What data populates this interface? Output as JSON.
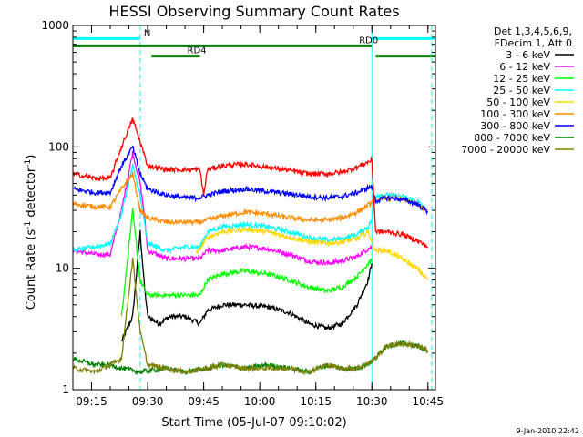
{
  "chart_data": {
    "type": "line",
    "title": "HESSI Observing Summary Count Rates",
    "xlabel": "Start Time (05-Jul-07 09:10:02)",
    "ylabel_main": "Count Rate (s",
    "ylabel_sup1": "-1",
    "ylabel_mid": " detector",
    "ylabel_sup2": "-1",
    "ylabel_end": ")",
    "ylabel": "Count Rate (s-1 detector-1)",
    "x_unit": "minutes after 09:10",
    "xlim": [
      0,
      97
    ],
    "ylim": [
      1,
      1000
    ],
    "yscale": "log",
    "x_ticks": [
      {
        "t": 5,
        "label": "09:15"
      },
      {
        "t": 20,
        "label": "09:30"
      },
      {
        "t": 35,
        "label": "09:45"
      },
      {
        "t": 50,
        "label": "10:00"
      },
      {
        "t": 65,
        "label": "10:15"
      },
      {
        "t": 80,
        "label": "10:30"
      },
      {
        "t": 95,
        "label": "10:45"
      }
    ],
    "y_ticks": [
      {
        "v": 1,
        "label": "1"
      },
      {
        "v": 10,
        "label": "10"
      },
      {
        "v": 100,
        "label": "100"
      },
      {
        "v": 1000,
        "label": "1000"
      }
    ],
    "legend_header": [
      "Det 1,3,4,5,6,9,",
      "FDecim 1, Att 0"
    ],
    "series": [
      {
        "name": "3 - 6 keV",
        "color": "#000000",
        "points": [
          [
            13,
            2.5
          ],
          [
            16,
            4
          ],
          [
            18,
            20
          ],
          [
            19,
            8
          ],
          [
            20,
            4
          ],
          [
            23,
            3.5
          ],
          [
            26,
            4
          ],
          [
            30,
            4
          ],
          [
            34,
            3.5
          ],
          [
            36,
            4.5
          ],
          [
            40,
            5
          ],
          [
            46,
            5
          ],
          [
            52,
            4.8
          ],
          [
            58,
            4.3
          ],
          [
            63,
            3.5
          ],
          [
            68,
            3.2
          ],
          [
            72,
            3.5
          ],
          [
            76,
            5
          ],
          [
            79,
            8
          ],
          [
            80,
            11
          ]
        ]
      },
      {
        "name": "6 - 12 keV",
        "color": "#ff00ff",
        "points": [
          [
            0,
            14
          ],
          [
            6,
            13
          ],
          [
            10,
            13
          ],
          [
            13,
            30
          ],
          [
            16,
            90
          ],
          [
            18,
            50
          ],
          [
            19,
            30
          ],
          [
            20,
            14
          ],
          [
            25,
            12
          ],
          [
            30,
            12
          ],
          [
            34,
            12
          ],
          [
            36,
            14
          ],
          [
            40,
            14
          ],
          [
            46,
            15
          ],
          [
            52,
            14.5
          ],
          [
            58,
            13
          ],
          [
            63,
            11.5
          ],
          [
            68,
            11
          ],
          [
            72,
            11.5
          ],
          [
            76,
            12.5
          ],
          [
            79,
            14.5
          ],
          [
            80,
            15
          ]
        ]
      },
      {
        "name": "12 - 25 keV",
        "color": "#00ff00",
        "points": [
          [
            13,
            4
          ],
          [
            16,
            30
          ],
          [
            18,
            8
          ],
          [
            20,
            6
          ],
          [
            25,
            6
          ],
          [
            30,
            6
          ],
          [
            34,
            6
          ],
          [
            36,
            8
          ],
          [
            40,
            9
          ],
          [
            46,
            9.5
          ],
          [
            52,
            9
          ],
          [
            58,
            8
          ],
          [
            63,
            7
          ],
          [
            68,
            6.5
          ],
          [
            72,
            7
          ],
          [
            76,
            8.5
          ],
          [
            79,
            11
          ],
          [
            80,
            12
          ]
        ]
      },
      {
        "name": "25 - 50 keV",
        "color": "#00ffff",
        "points": [
          [
            0,
            14
          ],
          [
            6,
            15
          ],
          [
            10,
            16
          ],
          [
            13,
            28
          ],
          [
            16,
            70
          ],
          [
            18,
            40
          ],
          [
            20,
            16
          ],
          [
            25,
            14
          ],
          [
            30,
            15
          ],
          [
            34,
            15
          ],
          [
            36,
            20
          ],
          [
            40,
            22
          ],
          [
            46,
            23
          ],
          [
            52,
            22
          ],
          [
            58,
            20
          ],
          [
            63,
            18
          ],
          [
            68,
            17
          ],
          [
            72,
            17.5
          ],
          [
            76,
            19
          ],
          [
            79,
            22
          ],
          [
            80,
            25
          ],
          [
            81,
            40
          ],
          [
            84,
            40
          ],
          [
            88,
            39
          ],
          [
            92,
            36
          ],
          [
            95,
            30
          ]
        ]
      },
      {
        "name": "50 - 100 keV",
        "color": "#ffd700",
        "points": [
          [
            33,
            13
          ],
          [
            36,
            18
          ],
          [
            40,
            20
          ],
          [
            46,
            21
          ],
          [
            52,
            20
          ],
          [
            58,
            18
          ],
          [
            63,
            16.5
          ],
          [
            68,
            16
          ],
          [
            72,
            16.5
          ],
          [
            76,
            17.5
          ],
          [
            79,
            20
          ],
          [
            81,
            14
          ],
          [
            84,
            14
          ],
          [
            88,
            12
          ],
          [
            92,
            10
          ],
          [
            95,
            8
          ]
        ]
      },
      {
        "name": "100 - 300 keV",
        "color": "#ff8c00",
        "points": [
          [
            0,
            34
          ],
          [
            6,
            32
          ],
          [
            10,
            32
          ],
          [
            13,
            45
          ],
          [
            16,
            60
          ],
          [
            18,
            30
          ],
          [
            20,
            26
          ],
          [
            25,
            24
          ],
          [
            30,
            24
          ],
          [
            34,
            24
          ],
          [
            36,
            25
          ],
          [
            40,
            27
          ],
          [
            46,
            29
          ],
          [
            52,
            28
          ],
          [
            58,
            26
          ],
          [
            63,
            25
          ],
          [
            68,
            25
          ],
          [
            72,
            26
          ],
          [
            76,
            29
          ],
          [
            79,
            33
          ],
          [
            80,
            35
          ],
          [
            81,
            36
          ],
          [
            84,
            38
          ],
          [
            88,
            37
          ],
          [
            92,
            34
          ],
          [
            95,
            29
          ]
        ]
      },
      {
        "name": "300 - 800 keV",
        "color": "#0000ff",
        "points": [
          [
            0,
            45
          ],
          [
            6,
            42
          ],
          [
            10,
            42
          ],
          [
            13,
            70
          ],
          [
            16,
            100
          ],
          [
            18,
            60
          ],
          [
            20,
            45
          ],
          [
            25,
            40
          ],
          [
            30,
            38
          ],
          [
            34,
            38
          ],
          [
            36,
            40
          ],
          [
            40,
            43
          ],
          [
            46,
            45
          ],
          [
            52,
            43
          ],
          [
            58,
            41
          ],
          [
            63,
            39
          ],
          [
            68,
            38
          ],
          [
            72,
            39
          ],
          [
            76,
            42
          ],
          [
            79,
            46
          ],
          [
            80,
            47
          ],
          [
            81,
            36
          ],
          [
            84,
            38
          ],
          [
            88,
            37
          ],
          [
            92,
            34
          ],
          [
            95,
            29
          ]
        ]
      },
      {
        "name": "800 - 7000 keV",
        "color": "#008000",
        "points": [
          [
            0,
            1.8
          ],
          [
            6,
            1.6
          ],
          [
            10,
            1.6
          ],
          [
            13,
            1.5
          ],
          [
            18,
            1.4
          ],
          [
            25,
            1.5
          ],
          [
            30,
            1.4
          ],
          [
            36,
            1.5
          ],
          [
            40,
            1.6
          ],
          [
            46,
            1.5
          ],
          [
            52,
            1.6
          ],
          [
            58,
            1.5
          ],
          [
            63,
            1.4
          ],
          [
            68,
            1.6
          ],
          [
            72,
            1.5
          ],
          [
            76,
            1.5
          ],
          [
            80,
            1.7
          ],
          [
            84,
            2.3
          ],
          [
            88,
            2.4
          ],
          [
            92,
            2.3
          ],
          [
            95,
            2.1
          ]
        ]
      },
      {
        "name": "7000 - 20000 keV",
        "color": "#808000",
        "points": [
          [
            0,
            1.5
          ],
          [
            6,
            1.4
          ],
          [
            10,
            1.6
          ],
          [
            13,
            1.8
          ],
          [
            16,
            12
          ],
          [
            18,
            3
          ],
          [
            20,
            1.6
          ],
          [
            25,
            1.5
          ],
          [
            30,
            1.4
          ],
          [
            36,
            1.5
          ],
          [
            40,
            1.6
          ],
          [
            46,
            1.5
          ],
          [
            52,
            1.5
          ],
          [
            58,
            1.5
          ],
          [
            63,
            1.4
          ],
          [
            68,
            1.6
          ],
          [
            72,
            1.5
          ],
          [
            76,
            1.5
          ],
          [
            80,
            1.7
          ],
          [
            84,
            2.3
          ],
          [
            88,
            2.4
          ],
          [
            92,
            2.3
          ],
          [
            95,
            2.1
          ]
        ]
      },
      {
        "name": "",
        "color": "#ff0000",
        "points": [
          [
            0,
            60
          ],
          [
            6,
            55
          ],
          [
            10,
            55
          ],
          [
            13,
            100
          ],
          [
            16,
            170
          ],
          [
            18,
            110
          ],
          [
            20,
            70
          ],
          [
            25,
            65
          ],
          [
            30,
            65
          ],
          [
            34,
            65
          ],
          [
            35,
            40
          ],
          [
            36,
            65
          ],
          [
            40,
            70
          ],
          [
            46,
            72
          ],
          [
            52,
            68
          ],
          [
            58,
            64
          ],
          [
            63,
            60
          ],
          [
            68,
            60
          ],
          [
            72,
            62
          ],
          [
            76,
            68
          ],
          [
            79,
            75
          ],
          [
            80,
            78
          ],
          [
            81,
            20
          ],
          [
            84,
            20
          ],
          [
            88,
            19
          ],
          [
            92,
            17
          ],
          [
            95,
            15
          ]
        ]
      }
    ],
    "state_bars": [
      {
        "label": "N",
        "color": "#00ffff",
        "y": 780,
        "segments": [
          [
            0,
            18
          ],
          [
            80,
            97
          ]
        ]
      },
      {
        "label": "RD0",
        "color": "#008000",
        "y": 680,
        "segments": [
          [
            0,
            80
          ]
        ]
      },
      {
        "label": "RD4",
        "color": "#008000",
        "y": 560,
        "segments": [
          [
            21,
            34
          ],
          [
            81,
            97
          ]
        ]
      }
    ],
    "vlines": [
      {
        "t": 0,
        "color": "#00ffff",
        "dashed": false
      },
      {
        "t": 18,
        "color": "#00ffff",
        "dashed": true
      },
      {
        "t": 80,
        "color": "#00ffff",
        "dashed": false
      },
      {
        "t": 96,
        "color": "#00ffff",
        "dashed": true
      }
    ]
  },
  "footer_date": "9-Jan-2010 22:42"
}
